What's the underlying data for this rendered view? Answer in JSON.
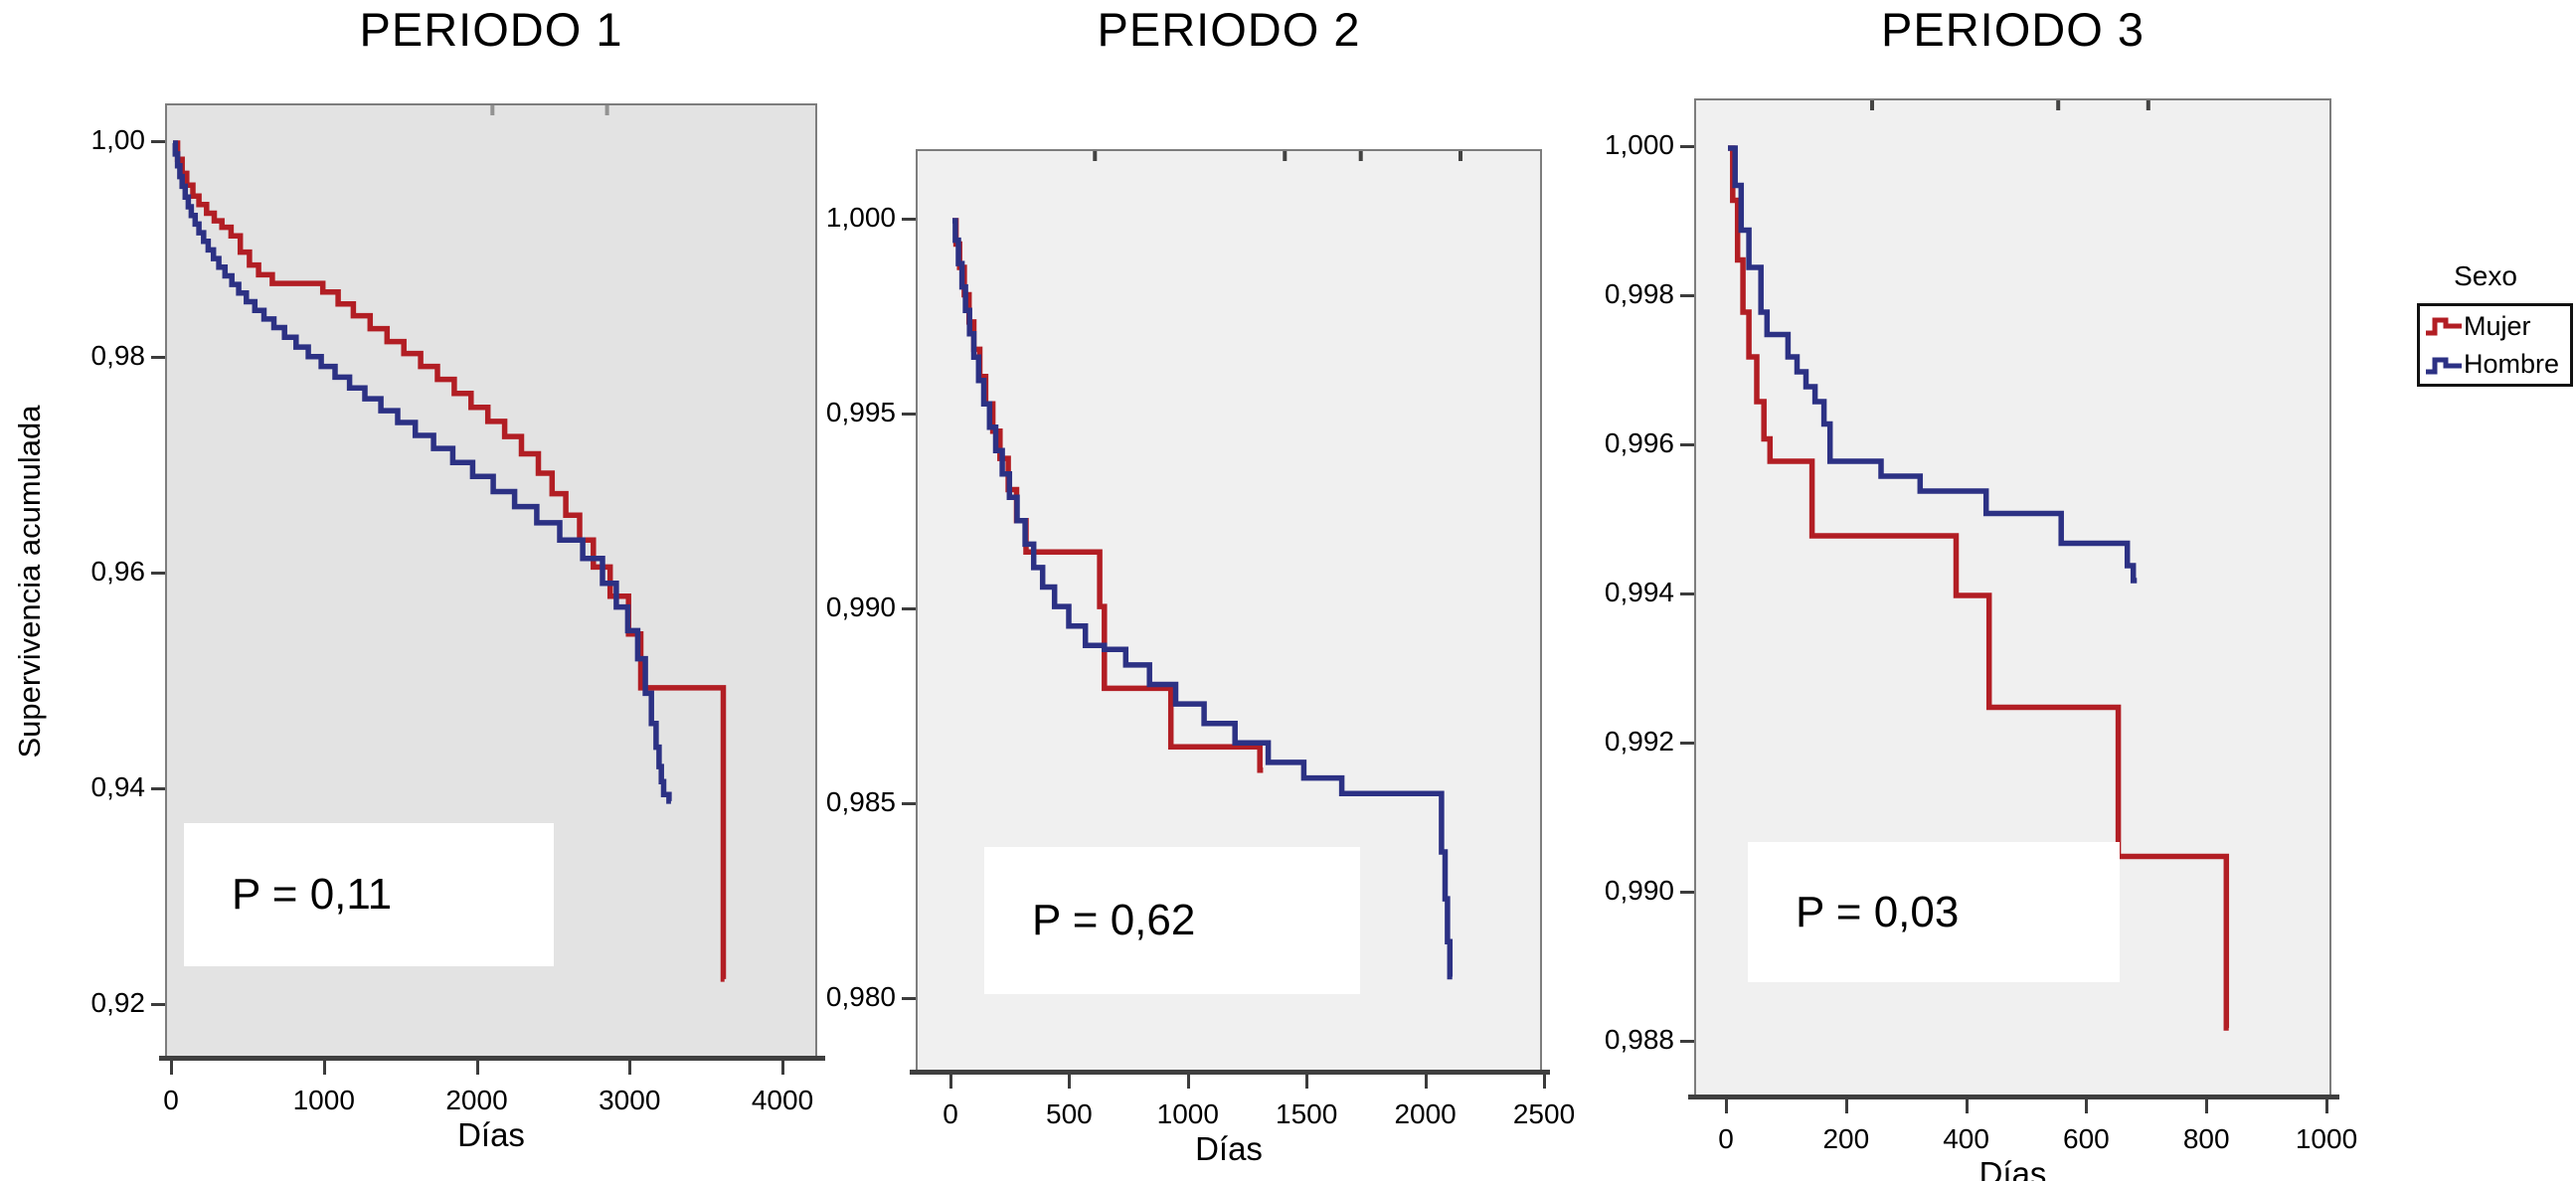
{
  "page": {
    "background": "#ffffff"
  },
  "legend": {
    "title": "Sexo",
    "items": [
      {
        "label": "Mujer",
        "color": "#b21e24"
      },
      {
        "label": "Hombre",
        "color": "#2c3184"
      }
    ]
  },
  "chart_data": [
    {
      "type": "step",
      "title": "PERIODO 1",
      "xlabel": "Días",
      "ylabel": "Supervivencia acumulada",
      "p_label": "P = 0,11",
      "bg": "#e3e3e3",
      "x_range": [
        0,
        4000
      ],
      "y_range": [
        0.92,
        1.0
      ],
      "x_ticks": [
        {
          "v": 0,
          "label": "0"
        },
        {
          "v": 1000,
          "label": "1000"
        },
        {
          "v": 2000,
          "label": "2000"
        },
        {
          "v": 3000,
          "label": "3000"
        },
        {
          "v": 4000,
          "label": "4000"
        }
      ],
      "y_ticks": [
        {
          "v": 1.0,
          "label": "1,00"
        },
        {
          "v": 0.98,
          "label": "0,98"
        },
        {
          "v": 0.96,
          "label": "0,96"
        },
        {
          "v": 0.94,
          "label": "0,94"
        },
        {
          "v": 0.92,
          "label": "0,92"
        }
      ],
      "censor_marks_days": [
        2090,
        2840
      ],
      "series": [
        {
          "name": "Mujer",
          "color": "#b21e24",
          "end_day": 3608,
          "points": [
            [
              0,
              1.0
            ],
            [
              30,
              0.9985
            ],
            [
              60,
              0.9972
            ],
            [
              90,
              0.9961
            ],
            [
              130,
              0.9951
            ],
            [
              170,
              0.9943
            ],
            [
              220,
              0.9935
            ],
            [
              270,
              0.9928
            ],
            [
              320,
              0.9922
            ],
            [
              380,
              0.9914
            ],
            [
              440,
              0.9899
            ],
            [
              500,
              0.9887
            ],
            [
              560,
              0.9878
            ],
            [
              650,
              0.987
            ],
            [
              980,
              0.9862
            ],
            [
              1080,
              0.9851
            ],
            [
              1180,
              0.984
            ],
            [
              1290,
              0.9828
            ],
            [
              1400,
              0.9816
            ],
            [
              1510,
              0.9805
            ],
            [
              1620,
              0.9793
            ],
            [
              1730,
              0.9781
            ],
            [
              1840,
              0.9768
            ],
            [
              1950,
              0.9755
            ],
            [
              2060,
              0.9742
            ],
            [
              2170,
              0.9728
            ],
            [
              2280,
              0.9712
            ],
            [
              2390,
              0.9694
            ],
            [
              2480,
              0.9675
            ],
            [
              2570,
              0.9655
            ],
            [
              2660,
              0.9632
            ],
            [
              2750,
              0.9607
            ],
            [
              2860,
              0.958
            ],
            [
              2980,
              0.9545
            ],
            [
              3060,
              0.9495
            ],
            [
              3600,
              0.9225
            ]
          ]
        },
        {
          "name": "Hombre",
          "color": "#2c3184",
          "end_day": 3258,
          "points": [
            [
              0,
              1.0
            ],
            [
              15,
              0.999
            ],
            [
              30,
              0.9979
            ],
            [
              45,
              0.9969
            ],
            [
              60,
              0.996
            ],
            [
              80,
              0.995
            ],
            [
              100,
              0.9941
            ],
            [
              120,
              0.9933
            ],
            [
              145,
              0.9925
            ],
            [
              170,
              0.9917
            ],
            [
              200,
              0.9909
            ],
            [
              230,
              0.9901
            ],
            [
              265,
              0.9893
            ],
            [
              300,
              0.9885
            ],
            [
              340,
              0.9877
            ],
            [
              385,
              0.9869
            ],
            [
              430,
              0.9861
            ],
            [
              480,
              0.9853
            ],
            [
              535,
              0.9845
            ],
            [
              595,
              0.9837
            ],
            [
              660,
              0.9829
            ],
            [
              730,
              0.982
            ],
            [
              805,
              0.9811
            ],
            [
              885,
              0.9802
            ],
            [
              970,
              0.9793
            ],
            [
              1060,
              0.9783
            ],
            [
              1155,
              0.9773
            ],
            [
              1255,
              0.9763
            ],
            [
              1360,
              0.9752
            ],
            [
              1470,
              0.9741
            ],
            [
              1585,
              0.9729
            ],
            [
              1705,
              0.9717
            ],
            [
              1830,
              0.9704
            ],
            [
              1960,
              0.9691
            ],
            [
              2095,
              0.9677
            ],
            [
              2235,
              0.9663
            ],
            [
              2380,
              0.9648
            ],
            [
              2530,
              0.9632
            ],
            [
              2680,
              0.9615
            ],
            [
              2810,
              0.9592
            ],
            [
              2900,
              0.957
            ],
            [
              2975,
              0.9548
            ],
            [
              3040,
              0.9522
            ],
            [
              3090,
              0.949
            ],
            [
              3130,
              0.9462
            ],
            [
              3160,
              0.944
            ],
            [
              3180,
              0.9422
            ],
            [
              3195,
              0.9408
            ],
            [
              3210,
              0.9396
            ],
            [
              3245,
              0.939
            ]
          ]
        }
      ]
    },
    {
      "type": "step",
      "title": "PERIODO 2",
      "xlabel": "Días",
      "ylabel": "",
      "p_label": "P = 0,62",
      "bg": "#f0f0f0",
      "x_range": [
        0,
        2500
      ],
      "y_range": [
        0.98,
        1.0
      ],
      "x_ticks": [
        {
          "v": 0,
          "label": "0"
        },
        {
          "v": 500,
          "label": "500"
        },
        {
          "v": 1000,
          "label": "1000"
        },
        {
          "v": 1500,
          "label": "1500"
        },
        {
          "v": 2000,
          "label": "2000"
        },
        {
          "v": 2500,
          "label": "2500"
        }
      ],
      "y_ticks": [
        {
          "v": 1.0,
          "label": "1,000"
        },
        {
          "v": 0.995,
          "label": "0,995"
        },
        {
          "v": 0.99,
          "label": "0,990"
        },
        {
          "v": 0.985,
          "label": "0,985"
        },
        {
          "v": 0.98,
          "label": "0,980"
        }
      ],
      "censor_marks_days": [
        600,
        1400,
        1720,
        2140
      ],
      "series": [
        {
          "name": "Mujer",
          "color": "#b21e24",
          "end_day": 1308,
          "points": [
            [
              0,
              1.0
            ],
            [
              15,
              0.9994
            ],
            [
              30,
              0.9988
            ],
            [
              50,
              0.9981
            ],
            [
              70,
              0.9974
            ],
            [
              90,
              0.9967
            ],
            [
              115,
              0.996
            ],
            [
              140,
              0.9953
            ],
            [
              170,
              0.9946
            ],
            [
              200,
              0.9939
            ],
            [
              235,
              0.9931
            ],
            [
              270,
              0.9923
            ],
            [
              310,
              0.9915
            ],
            [
              620,
              0.9901
            ],
            [
              640,
              0.988
            ],
            [
              920,
              0.9865
            ],
            [
              1295,
              0.9859
            ]
          ]
        },
        {
          "name": "Hombre",
          "color": "#2c3184",
          "end_day": 2105,
          "points": [
            [
              0,
              1.0
            ],
            [
              12,
              0.9995
            ],
            [
              25,
              0.9989
            ],
            [
              40,
              0.9983
            ],
            [
              55,
              0.9977
            ],
            [
              72,
              0.9971
            ],
            [
              90,
              0.9965
            ],
            [
              110,
              0.9959
            ],
            [
              132,
              0.9953
            ],
            [
              156,
              0.9947
            ],
            [
              182,
              0.9941
            ],
            [
              210,
              0.9935
            ],
            [
              240,
              0.9929
            ],
            [
              272,
              0.9923
            ],
            [
              306,
              0.9917
            ],
            [
              342,
              0.9911
            ],
            [
              380,
              0.9906
            ],
            [
              430,
              0.9901
            ],
            [
              490,
              0.9896
            ],
            [
              560,
              0.9891
            ],
            [
              640,
              0.989
            ],
            [
              730,
              0.9886
            ],
            [
              830,
              0.9881
            ],
            [
              940,
              0.9876
            ],
            [
              1060,
              0.9871
            ],
            [
              1190,
              0.9866
            ],
            [
              1330,
              0.9861
            ],
            [
              1480,
              0.9857
            ],
            [
              1640,
              0.9853
            ],
            [
              2060,
              0.9838
            ],
            [
              2075,
              0.9826
            ],
            [
              2085,
              0.9815
            ],
            [
              2095,
              0.9806
            ]
          ]
        }
      ]
    },
    {
      "type": "step",
      "title": "PERIODO 3",
      "xlabel": "Días",
      "ylabel": "",
      "p_label": "P = 0,03",
      "bg": "#f0f0f0",
      "x_range": [
        0,
        1000
      ],
      "y_range": [
        0.988,
        1.0
      ],
      "x_ticks": [
        {
          "v": 0,
          "label": "0"
        },
        {
          "v": 200,
          "label": "200"
        },
        {
          "v": 400,
          "label": "400"
        },
        {
          "v": 600,
          "label": "600"
        },
        {
          "v": 800,
          "label": "800"
        },
        {
          "v": 1000,
          "label": "1000"
        }
      ],
      "y_ticks": [
        {
          "v": 1.0,
          "label": "1,000"
        },
        {
          "v": 0.998,
          "label": "0,998"
        },
        {
          "v": 0.996,
          "label": "0,996"
        },
        {
          "v": 0.994,
          "label": "0,994"
        },
        {
          "v": 0.992,
          "label": "0,992"
        },
        {
          "v": 0.99,
          "label": "0,990"
        },
        {
          "v": 0.988,
          "label": "0,988"
        }
      ],
      "censor_marks_days": [
        240,
        550,
        700
      ],
      "series": [
        {
          "name": "Mujer",
          "color": "#b21e24",
          "end_day": 834,
          "points": [
            [
              0,
              1.0
            ],
            [
              8,
              0.9993
            ],
            [
              16,
              0.9985
            ],
            [
              25,
              0.9978
            ],
            [
              35,
              0.9972
            ],
            [
              48,
              0.9966
            ],
            [
              60,
              0.9961
            ],
            [
              70,
              0.9958
            ],
            [
              140,
              0.9948
            ],
            [
              380,
              0.994
            ],
            [
              435,
              0.9925
            ],
            [
              650,
              0.9905
            ],
            [
              830,
              0.9882
            ]
          ]
        },
        {
          "name": "Hombre",
          "color": "#2c3184",
          "end_day": 681,
          "points": [
            [
              0,
              1.0
            ],
            [
              12,
              0.9995
            ],
            [
              22,
              0.9989
            ],
            [
              35,
              0.9984
            ],
            [
              55,
              0.9978
            ],
            [
              65,
              0.9975
            ],
            [
              100,
              0.9972
            ],
            [
              115,
              0.997
            ],
            [
              130,
              0.9968
            ],
            [
              145,
              0.9966
            ],
            [
              160,
              0.9963
            ],
            [
              170,
              0.9958
            ],
            [
              255,
              0.9956
            ],
            [
              320,
              0.9954
            ],
            [
              430,
              0.9951
            ],
            [
              555,
              0.9947
            ],
            [
              665,
              0.9944
            ],
            [
              675,
              0.9942
            ]
          ]
        }
      ]
    }
  ]
}
